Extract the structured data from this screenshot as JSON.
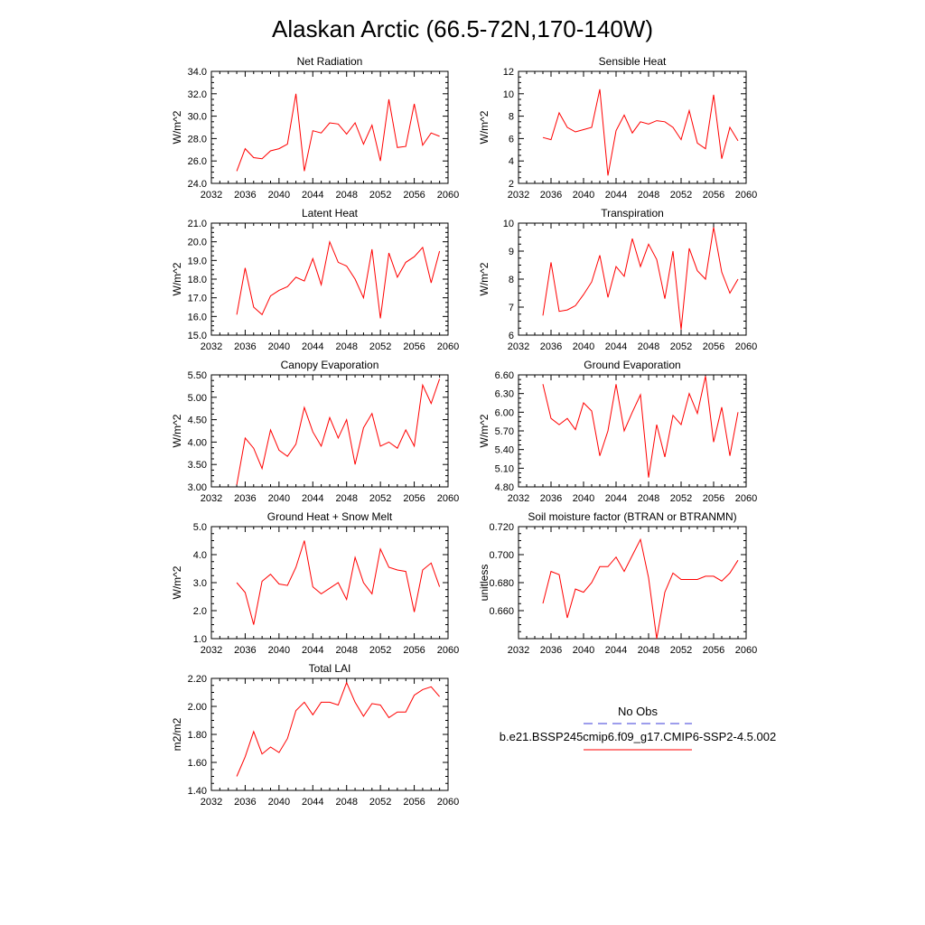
{
  "title": "Alaskan Arctic (66.5-72N,170-140W)",
  "legend": {
    "obs_label": "No Obs",
    "obs_color": "#3b3bd9",
    "model_label": "b.e21.BSSP245cmip6.f09_g17.CMIP6-SSP2-4.5.002",
    "model_color": "#ff0000"
  },
  "chart_data": [
    {
      "type": "line",
      "title": "Net Radiation",
      "ylabel": "W/m^2",
      "xlim": [
        2032,
        2060
      ],
      "ylim": [
        24,
        34
      ],
      "xticks": [
        "2032",
        "2036",
        "2040",
        "2044",
        "2048",
        "2052",
        "2056",
        "2060"
      ],
      "yticks": [
        "24.0",
        "26.0",
        "28.0",
        "30.0",
        "32.0",
        "34.0"
      ],
      "series": [
        {
          "x": [
            2035,
            2036,
            2037,
            2038,
            2039,
            2040,
            2041,
            2042,
            2043,
            2044,
            2045,
            2046,
            2047,
            2048,
            2049,
            2050,
            2051,
            2052,
            2053,
            2054,
            2055,
            2056,
            2057,
            2058,
            2059
          ],
          "values": [
            25.1,
            27.1,
            26.3,
            26.2,
            26.9,
            27.1,
            27.5,
            32.0,
            25.1,
            28.7,
            28.5,
            29.4,
            29.3,
            28.4,
            29.4,
            27.5,
            29.2,
            26.0,
            31.5,
            27.2,
            27.3,
            31.1,
            27.4,
            28.5,
            28.2
          ]
        }
      ]
    },
    {
      "type": "line",
      "title": "Sensible Heat",
      "ylabel": "W/m^2",
      "xlim": [
        2032,
        2060
      ],
      "ylim": [
        2,
        12
      ],
      "xticks": [
        "2032",
        "2036",
        "2040",
        "2044",
        "2048",
        "2052",
        "2056",
        "2060"
      ],
      "yticks": [
        "2",
        "4",
        "6",
        "8",
        "10",
        "12"
      ],
      "series": [
        {
          "x": [
            2035,
            2036,
            2037,
            2038,
            2039,
            2040,
            2041,
            2042,
            2043,
            2044,
            2045,
            2046,
            2047,
            2048,
            2049,
            2050,
            2051,
            2052,
            2053,
            2054,
            2055,
            2056,
            2057,
            2058,
            2059
          ],
          "values": [
            6.1,
            5.9,
            8.3,
            7.0,
            6.6,
            6.8,
            7.0,
            10.4,
            2.7,
            6.7,
            8.1,
            6.5,
            7.5,
            7.3,
            7.6,
            7.5,
            7.0,
            5.9,
            8.5,
            5.6,
            5.1,
            9.9,
            4.2,
            7.0,
            5.8
          ]
        }
      ]
    },
    {
      "type": "line",
      "title": "Latent Heat",
      "ylabel": "W/m^2",
      "xlim": [
        2032,
        2060
      ],
      "ylim": [
        15,
        21
      ],
      "xticks": [
        "2032",
        "2036",
        "2040",
        "2044",
        "2048",
        "2052",
        "2056",
        "2060"
      ],
      "yticks": [
        "15.0",
        "16.0",
        "17.0",
        "18.0",
        "19.0",
        "20.0",
        "21.0"
      ],
      "series": [
        {
          "x": [
            2035,
            2036,
            2037,
            2038,
            2039,
            2040,
            2041,
            2042,
            2043,
            2044,
            2045,
            2046,
            2047,
            2048,
            2049,
            2050,
            2051,
            2052,
            2053,
            2054,
            2055,
            2056,
            2057,
            2058,
            2059
          ],
          "values": [
            16.1,
            18.6,
            16.5,
            16.1,
            17.1,
            17.4,
            17.6,
            18.1,
            17.9,
            19.1,
            17.7,
            20.0,
            18.9,
            18.7,
            18.0,
            17.0,
            19.6,
            15.9,
            19.4,
            18.1,
            18.9,
            19.2,
            19.7,
            17.8,
            19.5
          ]
        }
      ]
    },
    {
      "type": "line",
      "title": "Transpiration",
      "ylabel": "W/m^2",
      "xlim": [
        2032,
        2060
      ],
      "ylim": [
        6,
        10
      ],
      "xticks": [
        "2032",
        "2036",
        "2040",
        "2044",
        "2048",
        "2052",
        "2056",
        "2060"
      ],
      "yticks": [
        "6",
        "7",
        "8",
        "9",
        "10"
      ],
      "series": [
        {
          "x": [
            2035,
            2036,
            2037,
            2038,
            2039,
            2040,
            2041,
            2042,
            2043,
            2044,
            2045,
            2046,
            2047,
            2048,
            2049,
            2050,
            2051,
            2052,
            2053,
            2054,
            2055,
            2056,
            2057,
            2058,
            2059
          ],
          "values": [
            6.7,
            8.6,
            6.85,
            6.9,
            7.05,
            7.45,
            7.9,
            8.85,
            7.35,
            8.45,
            8.1,
            9.45,
            8.45,
            9.25,
            8.7,
            7.3,
            9.0,
            6.2,
            9.1,
            8.3,
            8.0,
            9.85,
            8.25,
            7.5,
            8.0
          ]
        }
      ]
    },
    {
      "type": "line",
      "title": "Canopy Evaporation",
      "ylabel": "W/m^2",
      "xlim": [
        2032,
        2060
      ],
      "ylim": [
        2.85,
        5.6
      ],
      "xticks": [
        "2032",
        "2036",
        "2040",
        "2044",
        "2048",
        "2052",
        "2056",
        "2060"
      ],
      "yticks": [
        "3.00",
        "3.50",
        "4.00",
        "4.50",
        "5.00",
        "5.50"
      ],
      "series": [
        {
          "x": [
            2035,
            2036,
            2037,
            2038,
            2039,
            2040,
            2041,
            2042,
            2043,
            2044,
            2045,
            2046,
            2047,
            2048,
            2049,
            2050,
            2051,
            2052,
            2053,
            2054,
            2055,
            2056,
            2057,
            2058,
            2059
          ],
          "values": [
            2.9,
            4.05,
            3.8,
            3.3,
            4.25,
            3.75,
            3.6,
            3.9,
            4.8,
            4.2,
            3.85,
            4.55,
            4.05,
            4.5,
            3.4,
            4.3,
            4.65,
            3.85,
            3.95,
            3.8,
            4.25,
            3.85,
            5.35,
            4.9,
            5.5
          ]
        }
      ]
    },
    {
      "type": "line",
      "title": "Ground Evaporation",
      "ylabel": "W/m^2",
      "xlim": [
        2032,
        2060
      ],
      "ylim": [
        4.8,
        6.6
      ],
      "xticks": [
        "2032",
        "2036",
        "2040",
        "2044",
        "2048",
        "2052",
        "2056",
        "2060"
      ],
      "yticks": [
        "4.80",
        "5.10",
        "5.40",
        "5.70",
        "6.00",
        "6.30",
        "6.60"
      ],
      "series": [
        {
          "x": [
            2035,
            2036,
            2037,
            2038,
            2039,
            2040,
            2041,
            2042,
            2043,
            2044,
            2045,
            2046,
            2047,
            2048,
            2049,
            2050,
            2051,
            2052,
            2053,
            2054,
            2055,
            2056,
            2057,
            2058,
            2059
          ],
          "values": [
            6.45,
            5.9,
            5.8,
            5.9,
            5.72,
            6.15,
            6.02,
            5.3,
            5.7,
            6.45,
            5.7,
            6.0,
            6.28,
            4.95,
            5.8,
            5.28,
            5.95,
            5.8,
            6.3,
            5.98,
            6.58,
            5.52,
            6.08,
            5.3,
            6.0
          ]
        }
      ]
    },
    {
      "type": "line",
      "title": "Ground Heat + Snow Melt",
      "ylabel": "W/m^2",
      "xlim": [
        2032,
        2060
      ],
      "ylim": [
        1,
        5
      ],
      "xticks": [
        "2032",
        "2036",
        "2040",
        "2044",
        "2048",
        "2052",
        "2056",
        "2060"
      ],
      "yticks": [
        "1.0",
        "2.0",
        "3.0",
        "4.0",
        "5.0"
      ],
      "series": [
        {
          "x": [
            2035,
            2036,
            2037,
            2038,
            2039,
            2040,
            2041,
            2042,
            2043,
            2044,
            2045,
            2046,
            2047,
            2048,
            2049,
            2050,
            2051,
            2052,
            2053,
            2054,
            2055,
            2056,
            2057,
            2058,
            2059
          ],
          "values": [
            3.0,
            2.65,
            1.5,
            3.05,
            3.3,
            2.95,
            2.9,
            3.55,
            4.5,
            2.85,
            2.6,
            2.8,
            3.0,
            2.4,
            3.9,
            3.0,
            2.6,
            4.2,
            3.55,
            3.45,
            3.4,
            1.95,
            3.45,
            3.7,
            2.85
          ]
        }
      ]
    },
    {
      "type": "line",
      "title": "Soil moisture factor (BTRAN or BTRANMN)",
      "ylabel": "unitless",
      "xlim": [
        2032,
        2060
      ],
      "ylim": [
        0.65,
        0.72
      ],
      "xticks": [
        "2032",
        "2036",
        "2040",
        "2044",
        "2048",
        "2052",
        "2056",
        "2060"
      ],
      "yticks": [
        "",
        "0.660",
        "0.680",
        "0.700",
        "0.720"
      ],
      "series": [
        {
          "x": [
            2035,
            2036,
            2037,
            2038,
            2039,
            2040,
            2041,
            2042,
            2043,
            2044,
            2045,
            2046,
            2047,
            2048,
            2049,
            2050,
            2051,
            2052,
            2053,
            2054,
            2055,
            2056,
            2057,
            2058,
            2059
          ],
          "values": [
            0.672,
            0.692,
            0.69,
            0.663,
            0.681,
            0.679,
            0.685,
            0.695,
            0.695,
            0.701,
            0.692,
            0.702,
            0.712,
            0.688,
            0.65,
            0.679,
            0.691,
            0.687,
            0.687,
            0.687,
            0.689,
            0.689,
            0.686,
            0.691,
            0.699
          ]
        }
      ]
    },
    {
      "type": "line",
      "title": "Total LAI",
      "ylabel": "m2/m2",
      "xlim": [
        2032,
        2060
      ],
      "ylim": [
        1.4,
        2.2
      ],
      "xticks": [
        "2032",
        "2036",
        "2040",
        "2044",
        "2048",
        "2052",
        "2056",
        "2060"
      ],
      "yticks": [
        "1.40",
        "1.60",
        "1.80",
        "2.00",
        "2.20"
      ],
      "series": [
        {
          "x": [
            2035,
            2036,
            2037,
            2038,
            2039,
            2040,
            2041,
            2042,
            2043,
            2044,
            2045,
            2046,
            2047,
            2048,
            2049,
            2050,
            2051,
            2052,
            2053,
            2054,
            2055,
            2056,
            2057,
            2058,
            2059
          ],
          "values": [
            1.5,
            1.64,
            1.82,
            1.66,
            1.71,
            1.67,
            1.77,
            1.97,
            2.03,
            1.94,
            2.03,
            2.03,
            2.01,
            2.17,
            2.03,
            1.93,
            2.02,
            2.01,
            1.92,
            1.96,
            1.96,
            2.08,
            2.12,
            2.14,
            2.07
          ]
        }
      ]
    }
  ]
}
